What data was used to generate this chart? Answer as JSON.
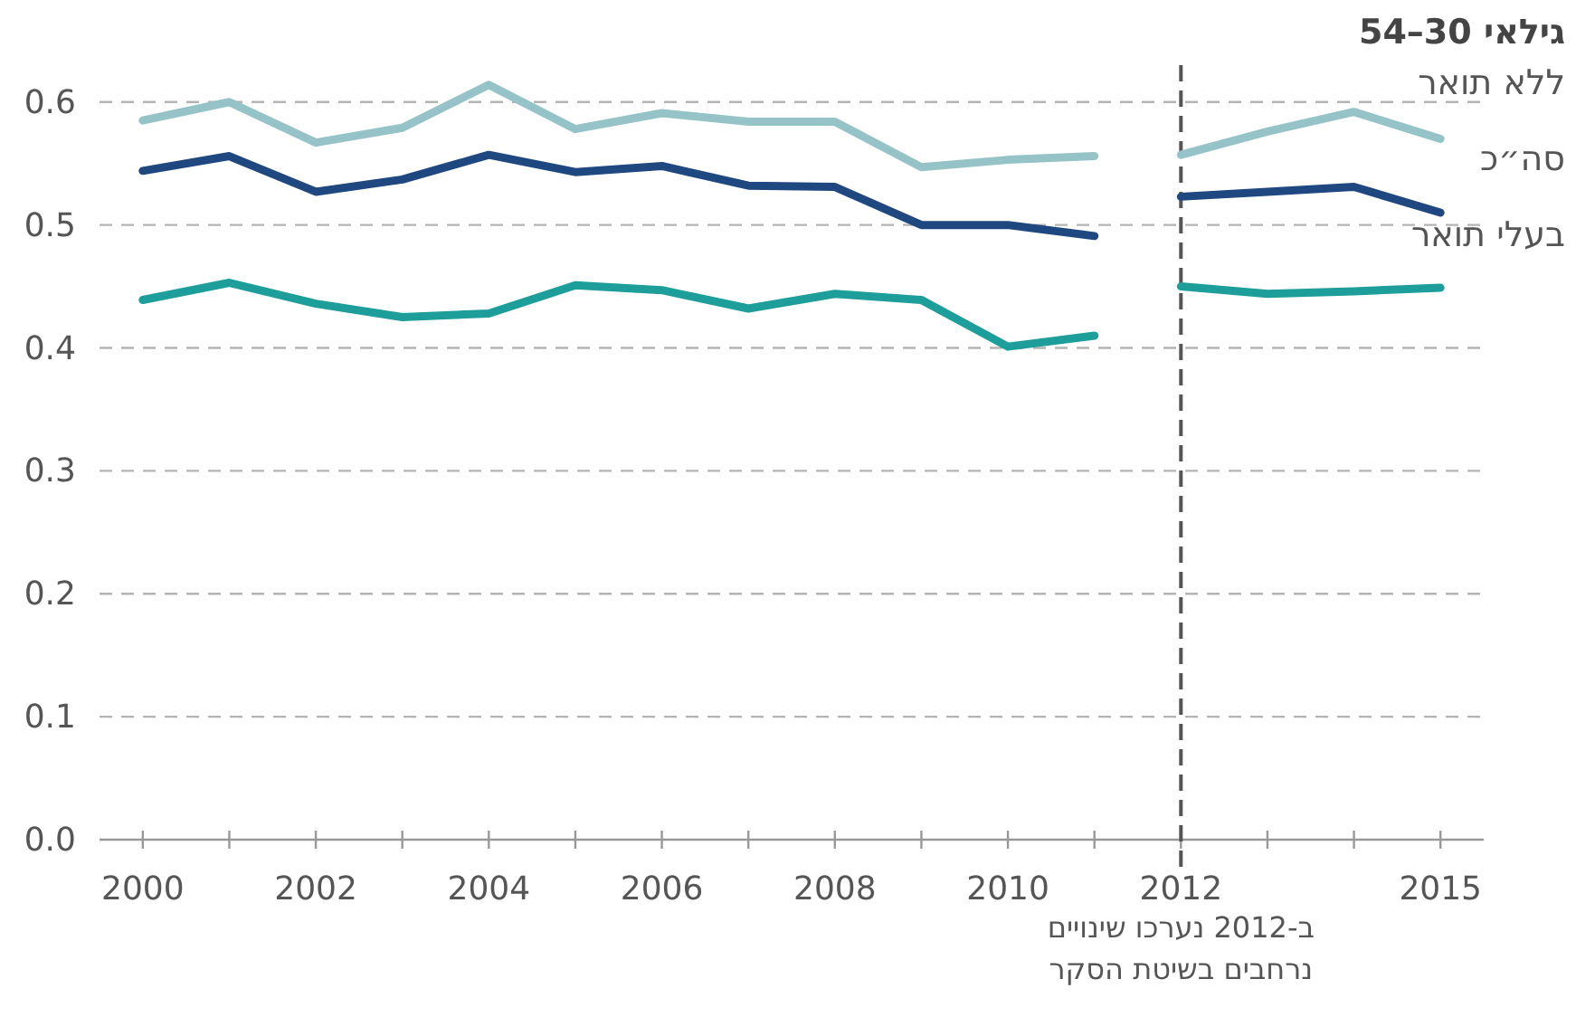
{
  "chart_data": {
    "type": "line",
    "legend_title": "גילאי 30–54",
    "series": [
      {
        "name": "ללא תואר",
        "color": "#96c3c8",
        "x": [
          2000,
          2001,
          2002,
          2003,
          2004,
          2005,
          2006,
          2007,
          2008,
          2009,
          2010,
          2011
        ],
        "values": [
          0.585,
          0.6,
          0.567,
          0.579,
          0.614,
          0.578,
          0.591,
          0.584,
          0.584,
          0.547,
          0.553,
          0.556
        ]
      },
      {
        "name": "סה״כ",
        "color": "#1f4780",
        "x": [
          2000,
          2001,
          2002,
          2003,
          2004,
          2005,
          2006,
          2007,
          2008,
          2009,
          2010,
          2011
        ],
        "values": [
          0.544,
          0.556,
          0.527,
          0.537,
          0.557,
          0.543,
          0.548,
          0.532,
          0.531,
          0.5,
          0.5,
          0.491
        ]
      },
      {
        "name": "בעלי תואר",
        "color": "#1e9e9a",
        "x": [
          2000,
          2001,
          2002,
          2003,
          2004,
          2005,
          2006,
          2007,
          2008,
          2009,
          2010,
          2011
        ],
        "values": [
          0.439,
          0.453,
          0.436,
          0.425,
          0.428,
          0.451,
          0.447,
          0.432,
          0.444,
          0.439,
          0.401,
          0.41
        ]
      },
      {
        "color": "#96c3c8",
        "x": [
          2012,
          2013,
          2014,
          2015
        ],
        "values": [
          0.557,
          0.576,
          0.592,
          0.57
        ]
      },
      {
        "color": "#1f4780",
        "x": [
          2012,
          2013,
          2014,
          2015
        ],
        "values": [
          0.523,
          0.527,
          0.531,
          0.51
        ]
      },
      {
        "color": "#1e9e9a",
        "x": [
          2012,
          2013,
          2014,
          2015
        ],
        "values": [
          0.45,
          0.444,
          0.446,
          0.449
        ]
      }
    ],
    "xlim": [
      1999.5,
      2015.5
    ],
    "xticks": [
      2000,
      {
        "value": 2001,
        "label": null
      },
      2002,
      {
        "value": 2003,
        "label": null
      },
      2004,
      {
        "value": 2005,
        "label": null
      },
      2006,
      {
        "value": 2007,
        "label": null
      },
      2008,
      {
        "value": 2009,
        "label": null
      },
      2010,
      {
        "value": 2011,
        "label": null
      },
      2012,
      {
        "value": 2013,
        "label": null
      },
      {
        "value": 2014,
        "label": null
      },
      2015
    ],
    "ylim": [
      0,
      0.63
    ],
    "yticks": [
      {
        "value": 0,
        "label": "0.0"
      },
      0.1,
      0.2,
      0.3,
      0.4,
      0.5,
      0.6
    ],
    "grid": "y",
    "line_style": "solid",
    "marker": "none",
    "ref_lines": [
      {
        "axis": "x",
        "value": 2012,
        "label": "ב-2012 נערכו שינויים נרחבים בשיטת הסקר",
        "color": "#555555",
        "line_style": "dashed"
      }
    ]
  }
}
